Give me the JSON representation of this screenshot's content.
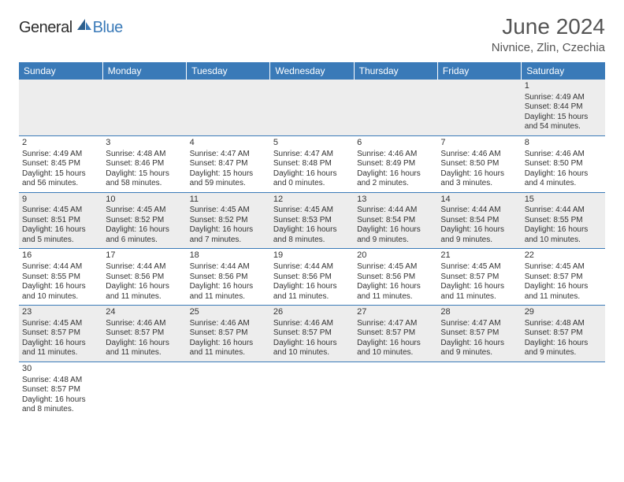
{
  "brand": {
    "part1": "General",
    "part2": "Blue"
  },
  "title": "June 2024",
  "location": "Nivnice, Zlin, Czechia",
  "colors": {
    "header_bg": "#3a7ab8",
    "header_text": "#ffffff",
    "alt_row_bg": "#ededed",
    "border": "#3a7ab8",
    "text": "#333333",
    "title_text": "#555555"
  },
  "weekdays": [
    "Sunday",
    "Monday",
    "Tuesday",
    "Wednesday",
    "Thursday",
    "Friday",
    "Saturday"
  ],
  "weeks": [
    {
      "alt": true,
      "days": [
        null,
        null,
        null,
        null,
        null,
        null,
        {
          "num": "1",
          "sunrise": "Sunrise: 4:49 AM",
          "sunset": "Sunset: 8:44 PM",
          "daylight": "Daylight: 15 hours and 54 minutes."
        }
      ]
    },
    {
      "alt": false,
      "days": [
        {
          "num": "2",
          "sunrise": "Sunrise: 4:49 AM",
          "sunset": "Sunset: 8:45 PM",
          "daylight": "Daylight: 15 hours and 56 minutes."
        },
        {
          "num": "3",
          "sunrise": "Sunrise: 4:48 AM",
          "sunset": "Sunset: 8:46 PM",
          "daylight": "Daylight: 15 hours and 58 minutes."
        },
        {
          "num": "4",
          "sunrise": "Sunrise: 4:47 AM",
          "sunset": "Sunset: 8:47 PM",
          "daylight": "Daylight: 15 hours and 59 minutes."
        },
        {
          "num": "5",
          "sunrise": "Sunrise: 4:47 AM",
          "sunset": "Sunset: 8:48 PM",
          "daylight": "Daylight: 16 hours and 0 minutes."
        },
        {
          "num": "6",
          "sunrise": "Sunrise: 4:46 AM",
          "sunset": "Sunset: 8:49 PM",
          "daylight": "Daylight: 16 hours and 2 minutes."
        },
        {
          "num": "7",
          "sunrise": "Sunrise: 4:46 AM",
          "sunset": "Sunset: 8:50 PM",
          "daylight": "Daylight: 16 hours and 3 minutes."
        },
        {
          "num": "8",
          "sunrise": "Sunrise: 4:46 AM",
          "sunset": "Sunset: 8:50 PM",
          "daylight": "Daylight: 16 hours and 4 minutes."
        }
      ]
    },
    {
      "alt": true,
      "days": [
        {
          "num": "9",
          "sunrise": "Sunrise: 4:45 AM",
          "sunset": "Sunset: 8:51 PM",
          "daylight": "Daylight: 16 hours and 5 minutes."
        },
        {
          "num": "10",
          "sunrise": "Sunrise: 4:45 AM",
          "sunset": "Sunset: 8:52 PM",
          "daylight": "Daylight: 16 hours and 6 minutes."
        },
        {
          "num": "11",
          "sunrise": "Sunrise: 4:45 AM",
          "sunset": "Sunset: 8:52 PM",
          "daylight": "Daylight: 16 hours and 7 minutes."
        },
        {
          "num": "12",
          "sunrise": "Sunrise: 4:45 AM",
          "sunset": "Sunset: 8:53 PM",
          "daylight": "Daylight: 16 hours and 8 minutes."
        },
        {
          "num": "13",
          "sunrise": "Sunrise: 4:44 AM",
          "sunset": "Sunset: 8:54 PM",
          "daylight": "Daylight: 16 hours and 9 minutes."
        },
        {
          "num": "14",
          "sunrise": "Sunrise: 4:44 AM",
          "sunset": "Sunset: 8:54 PM",
          "daylight": "Daylight: 16 hours and 9 minutes."
        },
        {
          "num": "15",
          "sunrise": "Sunrise: 4:44 AM",
          "sunset": "Sunset: 8:55 PM",
          "daylight": "Daylight: 16 hours and 10 minutes."
        }
      ]
    },
    {
      "alt": false,
      "days": [
        {
          "num": "16",
          "sunrise": "Sunrise: 4:44 AM",
          "sunset": "Sunset: 8:55 PM",
          "daylight": "Daylight: 16 hours and 10 minutes."
        },
        {
          "num": "17",
          "sunrise": "Sunrise: 4:44 AM",
          "sunset": "Sunset: 8:56 PM",
          "daylight": "Daylight: 16 hours and 11 minutes."
        },
        {
          "num": "18",
          "sunrise": "Sunrise: 4:44 AM",
          "sunset": "Sunset: 8:56 PM",
          "daylight": "Daylight: 16 hours and 11 minutes."
        },
        {
          "num": "19",
          "sunrise": "Sunrise: 4:44 AM",
          "sunset": "Sunset: 8:56 PM",
          "daylight": "Daylight: 16 hours and 11 minutes."
        },
        {
          "num": "20",
          "sunrise": "Sunrise: 4:45 AM",
          "sunset": "Sunset: 8:56 PM",
          "daylight": "Daylight: 16 hours and 11 minutes."
        },
        {
          "num": "21",
          "sunrise": "Sunrise: 4:45 AM",
          "sunset": "Sunset: 8:57 PM",
          "daylight": "Daylight: 16 hours and 11 minutes."
        },
        {
          "num": "22",
          "sunrise": "Sunrise: 4:45 AM",
          "sunset": "Sunset: 8:57 PM",
          "daylight": "Daylight: 16 hours and 11 minutes."
        }
      ]
    },
    {
      "alt": true,
      "days": [
        {
          "num": "23",
          "sunrise": "Sunrise: 4:45 AM",
          "sunset": "Sunset: 8:57 PM",
          "daylight": "Daylight: 16 hours and 11 minutes."
        },
        {
          "num": "24",
          "sunrise": "Sunrise: 4:46 AM",
          "sunset": "Sunset: 8:57 PM",
          "daylight": "Daylight: 16 hours and 11 minutes."
        },
        {
          "num": "25",
          "sunrise": "Sunrise: 4:46 AM",
          "sunset": "Sunset: 8:57 PM",
          "daylight": "Daylight: 16 hours and 11 minutes."
        },
        {
          "num": "26",
          "sunrise": "Sunrise: 4:46 AM",
          "sunset": "Sunset: 8:57 PM",
          "daylight": "Daylight: 16 hours and 10 minutes."
        },
        {
          "num": "27",
          "sunrise": "Sunrise: 4:47 AM",
          "sunset": "Sunset: 8:57 PM",
          "daylight": "Daylight: 16 hours and 10 minutes."
        },
        {
          "num": "28",
          "sunrise": "Sunrise: 4:47 AM",
          "sunset": "Sunset: 8:57 PM",
          "daylight": "Daylight: 16 hours and 9 minutes."
        },
        {
          "num": "29",
          "sunrise": "Sunrise: 4:48 AM",
          "sunset": "Sunset: 8:57 PM",
          "daylight": "Daylight: 16 hours and 9 minutes."
        }
      ]
    },
    {
      "alt": false,
      "last": true,
      "days": [
        {
          "num": "30",
          "sunrise": "Sunrise: 4:48 AM",
          "sunset": "Sunset: 8:57 PM",
          "daylight": "Daylight: 16 hours and 8 minutes."
        },
        null,
        null,
        null,
        null,
        null,
        null
      ]
    }
  ]
}
